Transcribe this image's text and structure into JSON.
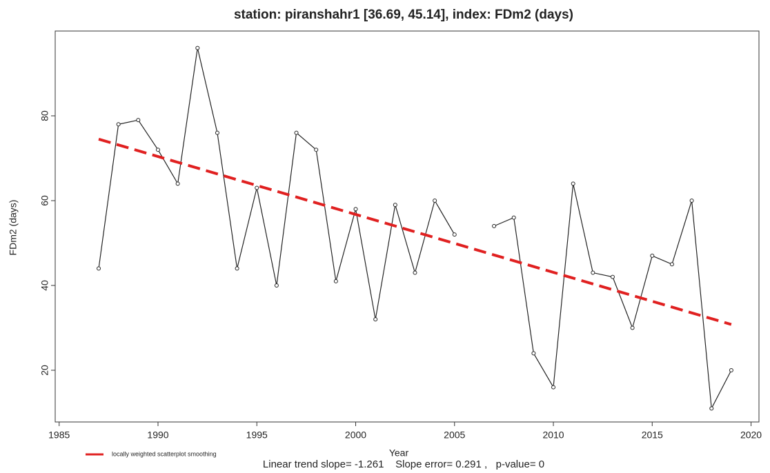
{
  "chart_data": {
    "type": "line",
    "title": "station: piranshahr1 [36.69, 45.14], index: FDm2 (days)",
    "x_label": "Year",
    "y_label": "FDm2 (days)",
    "annotation": "Linear trend slope= -1.261    Slope error= 0.291 ,   p-value= 0",
    "x": [
      1987,
      1988,
      1989,
      1990,
      1991,
      1992,
      1993,
      1994,
      1995,
      1996,
      1997,
      1998,
      1999,
      2000,
      2001,
      2002,
      2003,
      2004,
      2005,
      2006,
      2007,
      2008,
      2009,
      2010,
      2011,
      2012,
      2013,
      2014,
      2015,
      2016,
      2017,
      2018,
      2019
    ],
    "series": [
      {
        "name": "FDm2",
        "color": "#222222",
        "values": [
          44,
          78,
          79,
          72,
          64,
          96,
          76,
          44,
          63,
          40,
          76,
          72,
          41,
          58,
          32,
          59,
          43,
          60,
          52,
          null,
          54,
          56,
          24,
          16,
          64,
          43,
          42,
          30,
          47,
          45,
          60,
          11,
          20
        ]
      },
      {
        "name": "locally weighted scatterplot smoothing",
        "color": "#e02020",
        "dashed": true,
        "x": [
          1987,
          2019
        ],
        "values": [
          74.5,
          30.8
        ]
      }
    ],
    "xlim": [
      1984.8,
      2020.4
    ],
    "ylim": [
      7.8,
      100
    ],
    "xticks": [
      1985,
      1990,
      1995,
      2000,
      2005,
      2010,
      2015,
      2020
    ],
    "yticks": [
      20,
      40,
      60,
      80
    ]
  }
}
